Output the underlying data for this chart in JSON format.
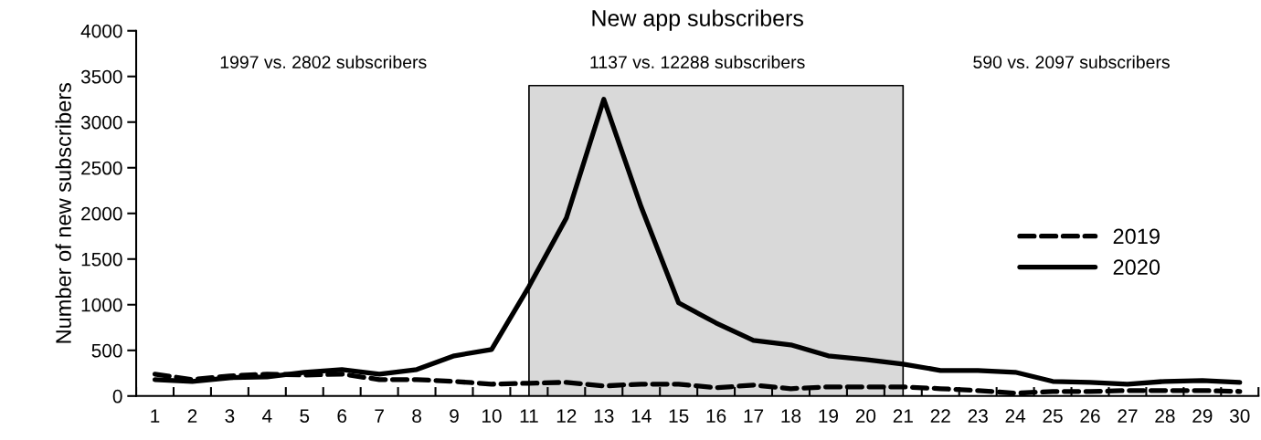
{
  "chart_data": {
    "type": "line",
    "title": "New app subscribers",
    "ylabel": "Number of new subscribers",
    "categories": [
      "1",
      "2",
      "3",
      "4",
      "5",
      "6",
      "7",
      "8",
      "9",
      "10",
      "11",
      "12",
      "13",
      "14",
      "15",
      "16",
      "17",
      "18",
      "19",
      "20",
      "21",
      "22",
      "23",
      "24",
      "25",
      "26",
      "27",
      "28",
      "29",
      "30"
    ],
    "series": [
      {
        "name": "2019",
        "color": "#000000",
        "line_style": "dashed",
        "values": [
          240,
          180,
          220,
          240,
          230,
          240,
          180,
          180,
          160,
          130,
          140,
          150,
          110,
          130,
          130,
          90,
          120,
          80,
          100,
          100,
          100,
          80,
          60,
          30,
          50,
          50,
          60,
          60,
          60,
          50
        ]
      },
      {
        "name": "2020",
        "color": "#000000",
        "line_style": "solid",
        "values": [
          180,
          160,
          200,
          210,
          260,
          290,
          240,
          290,
          440,
          510,
          1200,
          1950,
          3250,
          2070,
          1020,
          800,
          610,
          560,
          440,
          400,
          350,
          280,
          280,
          260,
          160,
          150,
          130,
          160,
          170,
          150
        ]
      }
    ],
    "bands": [
      {
        "axis": "x",
        "from": "11",
        "to": "21",
        "color": "#d9d9d9"
      }
    ],
    "annotations": [
      "1997 vs. 2802 subscribers",
      "1137 vs. 12288 subscribers",
      "590 vs. 2097 subscribers"
    ],
    "ylim": [
      0,
      4000
    ],
    "yticks": [
      0,
      500,
      1000,
      1500,
      2000,
      2500,
      3000,
      3500,
      4000
    ],
    "grid": false,
    "legend": "right",
    "marker": "none"
  }
}
